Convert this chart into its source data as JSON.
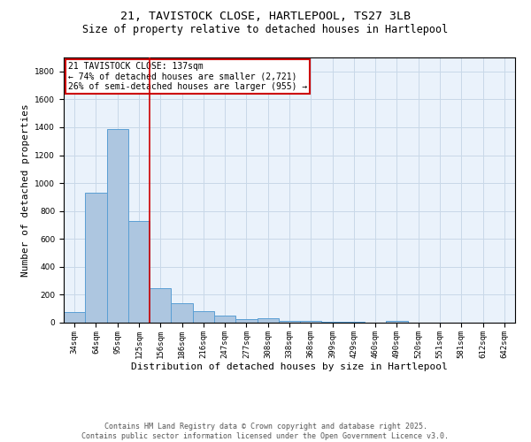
{
  "title_line1": "21, TAVISTOCK CLOSE, HARTLEPOOL, TS27 3LB",
  "title_line2": "Size of property relative to detached houses in Hartlepool",
  "xlabel": "Distribution of detached houses by size in Hartlepool",
  "ylabel": "Number of detached properties",
  "categories": [
    "34sqm",
    "64sqm",
    "95sqm",
    "125sqm",
    "156sqm",
    "186sqm",
    "216sqm",
    "247sqm",
    "277sqm",
    "308sqm",
    "338sqm",
    "368sqm",
    "399sqm",
    "429sqm",
    "460sqm",
    "490sqm",
    "520sqm",
    "551sqm",
    "581sqm",
    "612sqm",
    "642sqm"
  ],
  "values": [
    75,
    930,
    1390,
    730,
    245,
    140,
    85,
    50,
    25,
    30,
    15,
    10,
    5,
    5,
    2,
    10,
    2,
    2,
    2,
    2,
    2
  ],
  "bar_color": "#adc6e0",
  "bar_edge_color": "#5a9fd4",
  "red_line_index": 3.5,
  "annotation_title": "21 TAVISTOCK CLOSE: 137sqm",
  "annotation_line2": "← 74% of detached houses are smaller (2,721)",
  "annotation_line3": "26% of semi-detached houses are larger (955) →",
  "annotation_box_color": "#ffffff",
  "annotation_box_edge": "#cc0000",
  "red_line_color": "#cc0000",
  "ylim": [
    0,
    1900
  ],
  "yticks": [
    0,
    200,
    400,
    600,
    800,
    1000,
    1200,
    1400,
    1600,
    1800
  ],
  "grid_color": "#c8d8e8",
  "background_color": "#eaf2fb",
  "footer_line1": "Contains HM Land Registry data © Crown copyright and database right 2025.",
  "footer_line2": "Contains public sector information licensed under the Open Government Licence v3.0.",
  "title_fontsize": 9.5,
  "subtitle_fontsize": 8.5,
  "axis_label_fontsize": 8,
  "tick_fontsize": 6.5,
  "annotation_fontsize": 7,
  "footer_fontsize": 6
}
